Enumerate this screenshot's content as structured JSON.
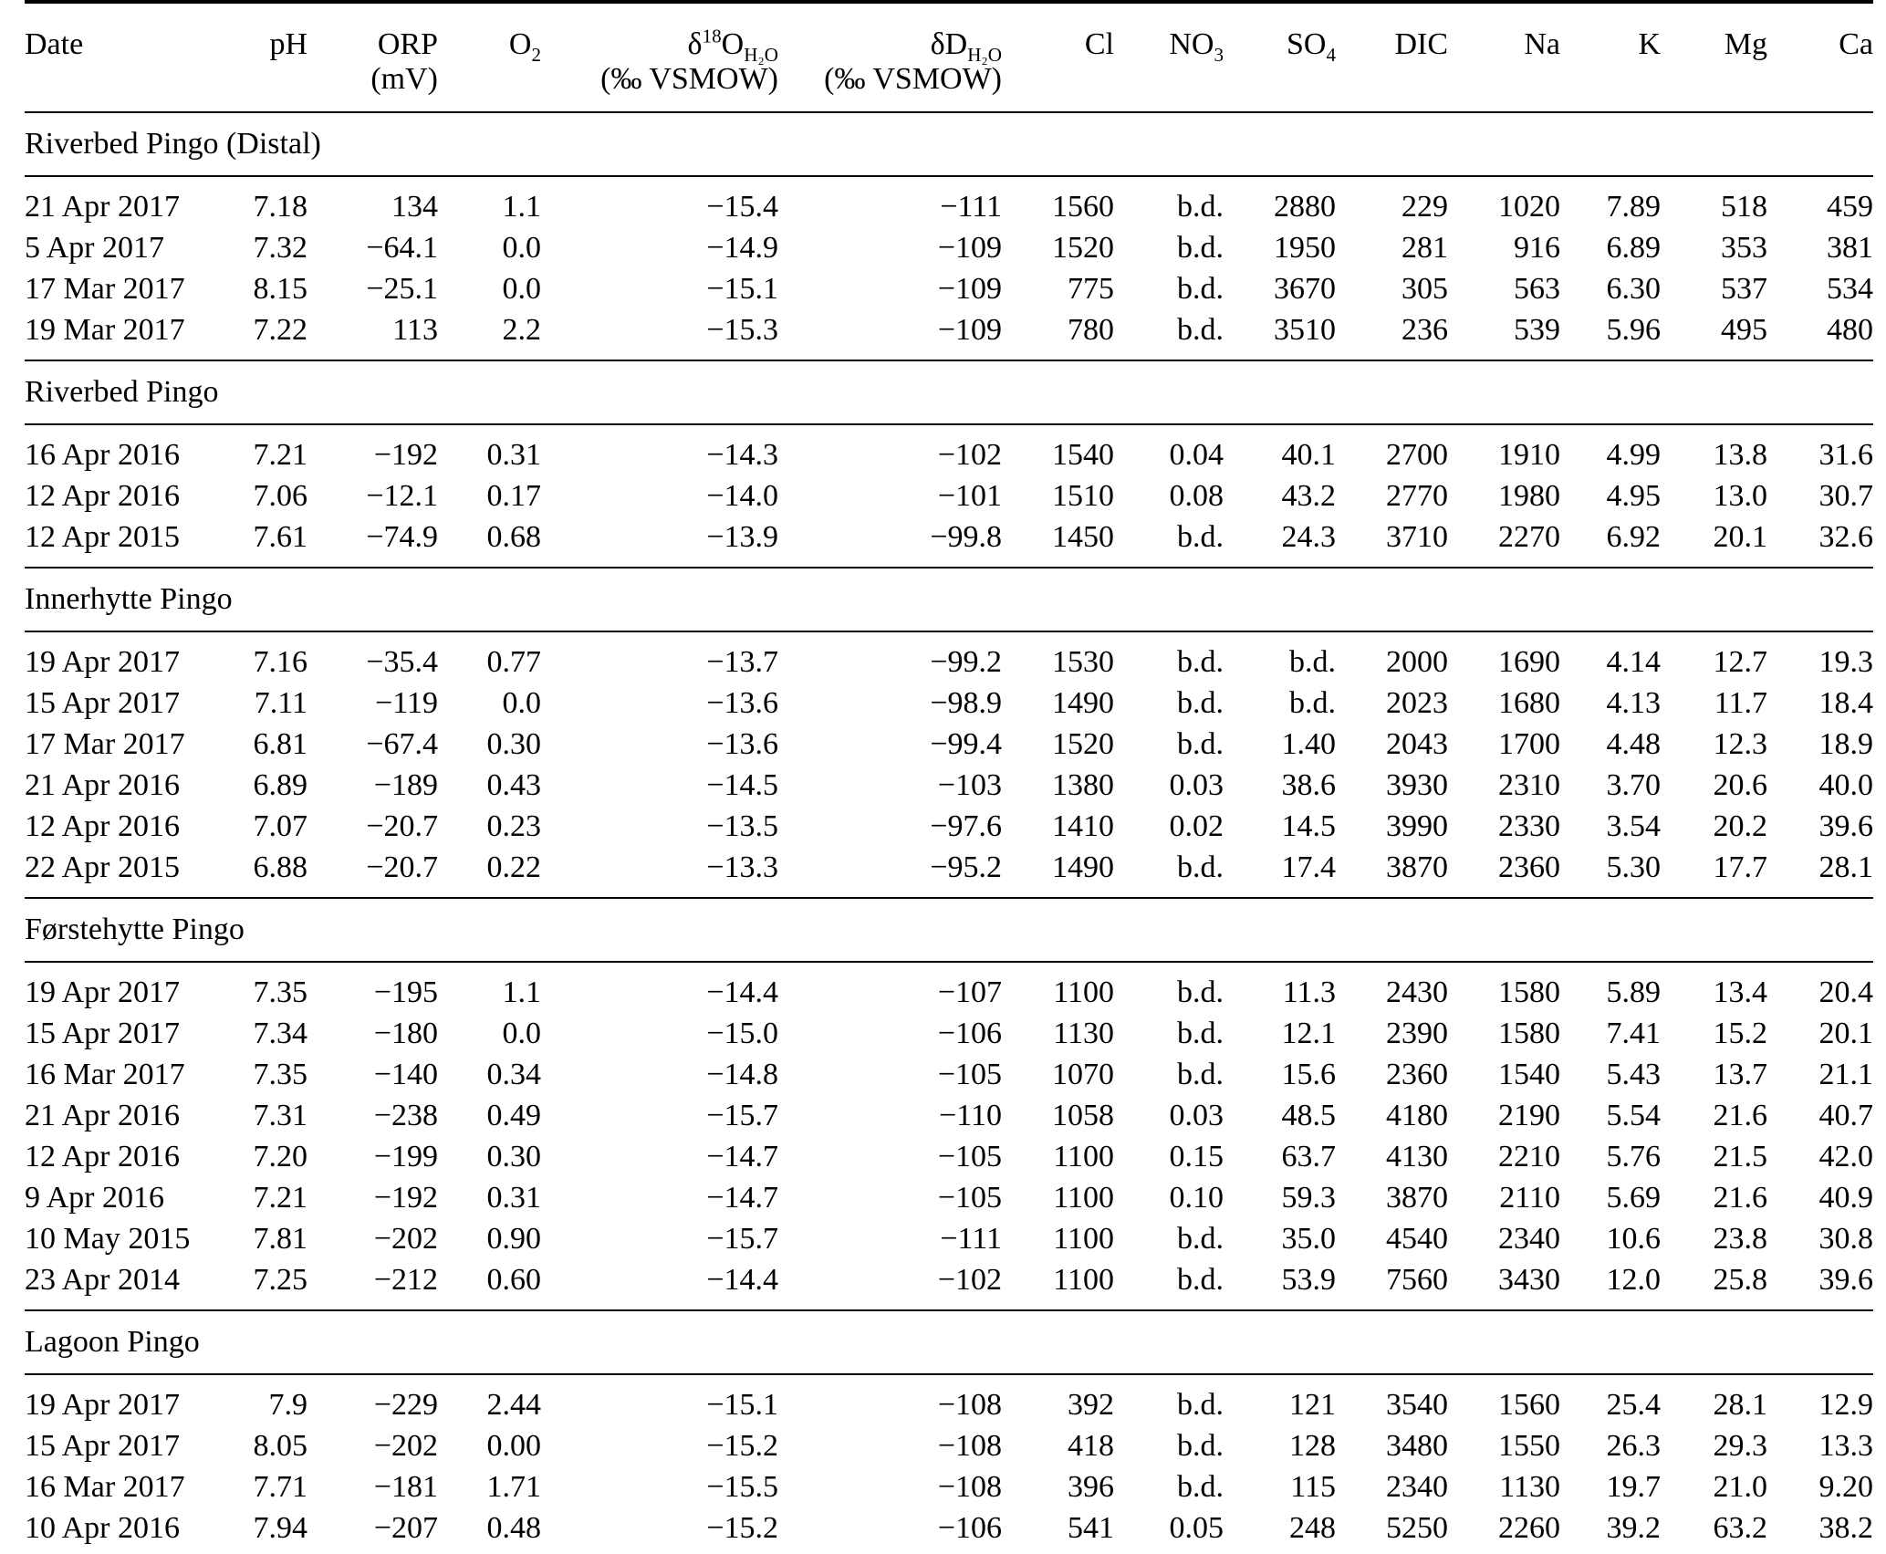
{
  "colors": {
    "text": "#000000",
    "background": "#ffffff",
    "rule": "#000000"
  },
  "table": {
    "columns": [
      {
        "key": "date",
        "label": "Date",
        "unit": ""
      },
      {
        "key": "ph",
        "label": "pH",
        "unit": ""
      },
      {
        "key": "orp",
        "label": "ORP",
        "unit": "(mV)"
      },
      {
        "key": "o2",
        "label": "O~2~",
        "unit": ""
      },
      {
        "key": "d18o-h2o",
        "label": "δ^18^O~H₂O~",
        "unit": "(‰ VSMOW)"
      },
      {
        "key": "dd-h2o",
        "label": "δD~H₂O~",
        "unit": "(‰ VSMOW)"
      },
      {
        "key": "cl",
        "label": "Cl",
        "unit": ""
      },
      {
        "key": "no3",
        "label": "NO~3~",
        "unit": ""
      },
      {
        "key": "so4",
        "label": "SO~4~",
        "unit": ""
      },
      {
        "key": "dic",
        "label": "DIC",
        "unit": ""
      },
      {
        "key": "na",
        "label": "Na",
        "unit": ""
      },
      {
        "key": "k",
        "label": "K",
        "unit": ""
      },
      {
        "key": "mg",
        "label": "Mg",
        "unit": ""
      },
      {
        "key": "ca",
        "label": "Ca",
        "unit": ""
      }
    ],
    "sections": [
      {
        "title": "Riverbed Pingo (Distal)",
        "rows": [
          [
            "21 Apr 2017",
            "7.18",
            "134",
            "1.1",
            "−15.4",
            "−111",
            "1560",
            "b.d.",
            "2880",
            "229",
            "1020",
            "7.89",
            "518",
            "459"
          ],
          [
            "5 Apr 2017",
            "7.32",
            "−64.1",
            "0.0",
            "−14.9",
            "−109",
            "1520",
            "b.d.",
            "1950",
            "281",
            "916",
            "6.89",
            "353",
            "381"
          ],
          [
            "17 Mar 2017",
            "8.15",
            "−25.1",
            "0.0",
            "−15.1",
            "−109",
            "775",
            "b.d.",
            "3670",
            "305",
            "563",
            "6.30",
            "537",
            "534"
          ],
          [
            "19 Mar 2017",
            "7.22",
            "113",
            "2.2",
            "−15.3",
            "−109",
            "780",
            "b.d.",
            "3510",
            "236",
            "539",
            "5.96",
            "495",
            "480"
          ]
        ]
      },
      {
        "title": "Riverbed Pingo",
        "rows": [
          [
            "16 Apr 2016",
            "7.21",
            "−192",
            "0.31",
            "−14.3",
            "−102",
            "1540",
            "0.04",
            "40.1",
            "2700",
            "1910",
            "4.99",
            "13.8",
            "31.6"
          ],
          [
            "12 Apr 2016",
            "7.06",
            "−12.1",
            "0.17",
            "−14.0",
            "−101",
            "1510",
            "0.08",
            "43.2",
            "2770",
            "1980",
            "4.95",
            "13.0",
            "30.7"
          ],
          [
            "12 Apr 2015",
            "7.61",
            "−74.9",
            "0.68",
            "−13.9",
            "−99.8",
            "1450",
            "b.d.",
            "24.3",
            "3710",
            "2270",
            "6.92",
            "20.1",
            "32.6"
          ]
        ]
      },
      {
        "title": "Innerhytte Pingo",
        "rows": [
          [
            "19 Apr 2017",
            "7.16",
            "−35.4",
            "0.77",
            "−13.7",
            "−99.2",
            "1530",
            "b.d.",
            "b.d.",
            "2000",
            "1690",
            "4.14",
            "12.7",
            "19.3"
          ],
          [
            "15 Apr 2017",
            "7.11",
            "−119",
            "0.0",
            "−13.6",
            "−98.9",
            "1490",
            "b.d.",
            "b.d.",
            "2023",
            "1680",
            "4.13",
            "11.7",
            "18.4"
          ],
          [
            "17 Mar 2017",
            "6.81",
            "−67.4",
            "0.30",
            "−13.6",
            "−99.4",
            "1520",
            "b.d.",
            "1.40",
            "2043",
            "1700",
            "4.48",
            "12.3",
            "18.9"
          ],
          [
            "21 Apr 2016",
            "6.89",
            "−189",
            "0.43",
            "−14.5",
            "−103",
            "1380",
            "0.03",
            "38.6",
            "3930",
            "2310",
            "3.70",
            "20.6",
            "40.0"
          ],
          [
            "12 Apr 2016",
            "7.07",
            "−20.7",
            "0.23",
            "−13.5",
            "−97.6",
            "1410",
            "0.02",
            "14.5",
            "3990",
            "2330",
            "3.54",
            "20.2",
            "39.6"
          ],
          [
            "22 Apr 2015",
            "6.88",
            "−20.7",
            "0.22",
            "−13.3",
            "−95.2",
            "1490",
            "b.d.",
            "17.4",
            "3870",
            "2360",
            "5.30",
            "17.7",
            "28.1"
          ]
        ]
      },
      {
        "title": "Førstehytte Pingo",
        "rows": [
          [
            "19 Apr 2017",
            "7.35",
            "−195",
            "1.1",
            "−14.4",
            "−107",
            "1100",
            "b.d.",
            "11.3",
            "2430",
            "1580",
            "5.89",
            "13.4",
            "20.4"
          ],
          [
            "15 Apr 2017",
            "7.34",
            "−180",
            "0.0",
            "−15.0",
            "−106",
            "1130",
            "b.d.",
            "12.1",
            "2390",
            "1580",
            "7.41",
            "15.2",
            "20.1"
          ],
          [
            "16 Mar 2017",
            "7.35",
            "−140",
            "0.34",
            "−14.8",
            "−105",
            "1070",
            "b.d.",
            "15.6",
            "2360",
            "1540",
            "5.43",
            "13.7",
            "21.1"
          ],
          [
            "21 Apr 2016",
            "7.31",
            "−238",
            "0.49",
            "−15.7",
            "−110",
            "1058",
            "0.03",
            "48.5",
            "4180",
            "2190",
            "5.54",
            "21.6",
            "40.7"
          ],
          [
            "12 Apr 2016",
            "7.20",
            "−199",
            "0.30",
            "−14.7",
            "−105",
            "1100",
            "0.15",
            "63.7",
            "4130",
            "2210",
            "5.76",
            "21.5",
            "42.0"
          ],
          [
            "9 Apr 2016",
            "7.21",
            "−192",
            "0.31",
            "−14.7",
            "−105",
            "1100",
            "0.10",
            "59.3",
            "3870",
            "2110",
            "5.69",
            "21.6",
            "40.9"
          ],
          [
            "10 May 2015",
            "7.81",
            "−202",
            "0.90",
            "−15.7",
            "−111",
            "1100",
            "b.d.",
            "35.0",
            "4540",
            "2340",
            "10.6",
            "23.8",
            "30.8"
          ],
          [
            "23 Apr 2014",
            "7.25",
            "−212",
            "0.60",
            "−14.4",
            "−102",
            "1100",
            "b.d.",
            "53.9",
            "7560",
            "3430",
            "12.0",
            "25.8",
            "39.6"
          ]
        ]
      },
      {
        "title": "Lagoon Pingo",
        "rows": [
          [
            "19 Apr 2017",
            "7.9",
            "−229",
            "2.44",
            "−15.1",
            "−108",
            "392",
            "b.d.",
            "121",
            "3540",
            "1560",
            "25.4",
            "28.1",
            "12.9"
          ],
          [
            "15 Apr 2017",
            "8.05",
            "−202",
            "0.00",
            "−15.2",
            "−108",
            "418",
            "b.d.",
            "128",
            "3480",
            "1550",
            "26.3",
            "29.3",
            "13.3"
          ],
          [
            "16 Mar 2017",
            "7.71",
            "−181",
            "1.71",
            "−15.5",
            "−108",
            "396",
            "b.d.",
            "115",
            "2340",
            "1130",
            "19.7",
            "21.0",
            "9.20"
          ],
          [
            "10 Apr 2016",
            "7.94",
            "−207",
            "0.48",
            "−15.2",
            "−106",
            "541",
            "0.05",
            "248",
            "5250",
            "2260",
            "39.2",
            "63.2",
            "38.2"
          ]
        ]
      }
    ]
  }
}
